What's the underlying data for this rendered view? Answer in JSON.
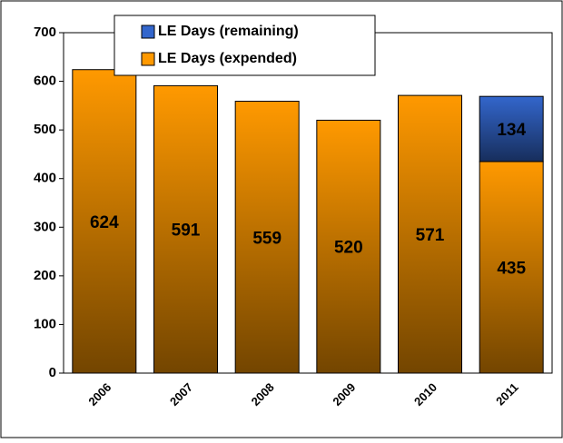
{
  "chart_data": {
    "type": "stacked_bar",
    "categories": [
      "2006",
      "2007",
      "2008",
      "2009",
      "2010",
      "2011"
    ],
    "series": [
      {
        "name": "LE Days (expended)",
        "color": "#ff9900",
        "values": [
          624,
          591,
          559,
          520,
          571,
          435
        ]
      },
      {
        "name": "LE Days (remaining)",
        "color": "#3366cc",
        "values": [
          null,
          null,
          null,
          null,
          null,
          134
        ]
      }
    ],
    "ylim": [
      0,
      700
    ],
    "yticks": [
      0,
      100,
      200,
      300,
      400,
      500,
      600,
      700
    ]
  }
}
